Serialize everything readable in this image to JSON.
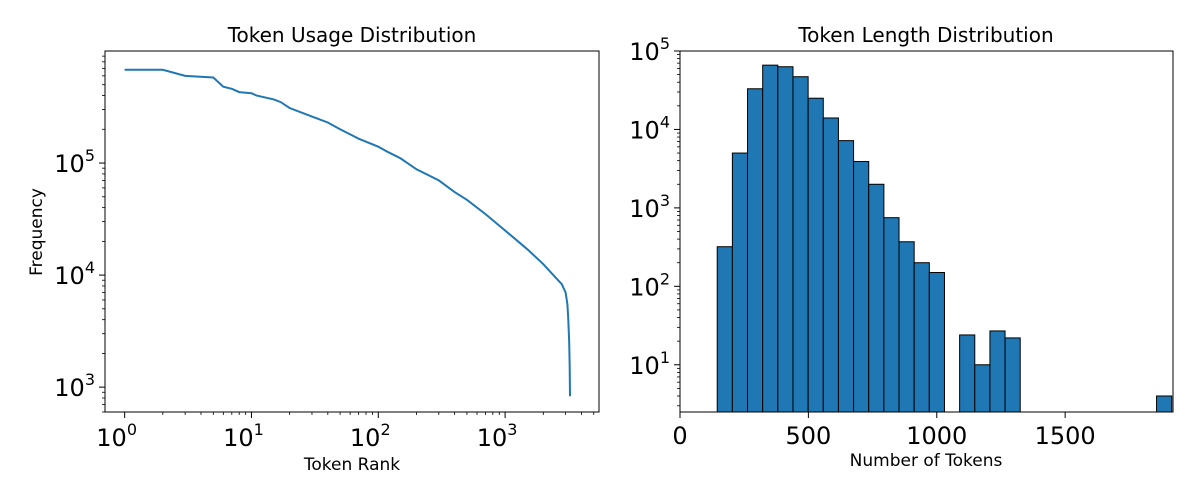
{
  "chart_data": [
    {
      "type": "line",
      "title": "Token Usage Distribution",
      "xlabel": "Token Rank",
      "ylabel": "Frequency",
      "xscale": "log",
      "yscale": "log",
      "xlim": [
        0.7,
        5500
      ],
      "ylim": [
        600,
        1000000
      ],
      "grid": false,
      "color": "#1f77b4",
      "xticks": [
        {
          "value": 1,
          "base": "10",
          "exp": "0"
        },
        {
          "value": 10,
          "base": "10",
          "exp": "1"
        },
        {
          "value": 100,
          "base": "10",
          "exp": "2"
        },
        {
          "value": 1000,
          "base": "10",
          "exp": "3"
        }
      ],
      "yticks": [
        {
          "value": 1000,
          "base": "10",
          "exp": "3"
        },
        {
          "value": 10000,
          "base": "10",
          "exp": "4"
        },
        {
          "value": 100000,
          "base": "10",
          "exp": "5"
        }
      ],
      "x": [
        1,
        2,
        3,
        5,
        6,
        7,
        8,
        10,
        11,
        15,
        17,
        20,
        30,
        40,
        50,
        60,
        70,
        80,
        100,
        120,
        150,
        200,
        300,
        400,
        500,
        700,
        1000,
        1500,
        2000,
        2500,
        2800,
        3000,
        3100,
        3150,
        3200,
        3230,
        3250
      ],
      "y": [
        680000,
        680000,
        600000,
        580000,
        480000,
        460000,
        430000,
        420000,
        400000,
        370000,
        350000,
        310000,
        260000,
        230000,
        200000,
        180000,
        165000,
        155000,
        140000,
        125000,
        110000,
        88000,
        70000,
        55000,
        47000,
        35000,
        25000,
        17000,
        12500,
        9500,
        8300,
        7000,
        5500,
        4000,
        2500,
        1500,
        830
      ]
    },
    {
      "type": "bar",
      "title": "Token Length Distribution",
      "xlabel": "Number of Tokens",
      "ylabel": "",
      "yscale": "log",
      "xlim": [
        0,
        1920
      ],
      "ylim": [
        2.5,
        100000
      ],
      "grid": false,
      "bar_color": "#1f77b4",
      "edge_color": "#000000",
      "xticks": [
        0,
        500,
        1000,
        1500
      ],
      "yticks": [
        {
          "value": 10,
          "base": "10",
          "exp": "1"
        },
        {
          "value": 100,
          "base": "10",
          "exp": "2"
        },
        {
          "value": 1000,
          "base": "10",
          "exp": "3"
        },
        {
          "value": 10000,
          "base": "10",
          "exp": "4"
        },
        {
          "value": 100000,
          "base": "10",
          "exp": "5"
        }
      ],
      "bin_width": 59,
      "bin_starts": [
        145,
        204,
        263,
        322,
        381,
        440,
        499,
        558,
        617,
        676,
        735,
        794,
        853,
        912,
        971,
        1030,
        1089,
        1148,
        1207,
        1266,
        1325,
        1384,
        1443,
        1502,
        1561,
        1620,
        1679,
        1738,
        1797,
        1856
      ],
      "values": [
        320,
        5000,
        33000,
        66000,
        63000,
        47000,
        25000,
        14000,
        7200,
        3900,
        2000,
        750,
        370,
        200,
        150,
        0,
        24,
        10,
        27,
        22,
        0,
        0,
        0,
        0,
        0,
        0,
        0,
        0,
        0,
        4
      ]
    }
  ]
}
